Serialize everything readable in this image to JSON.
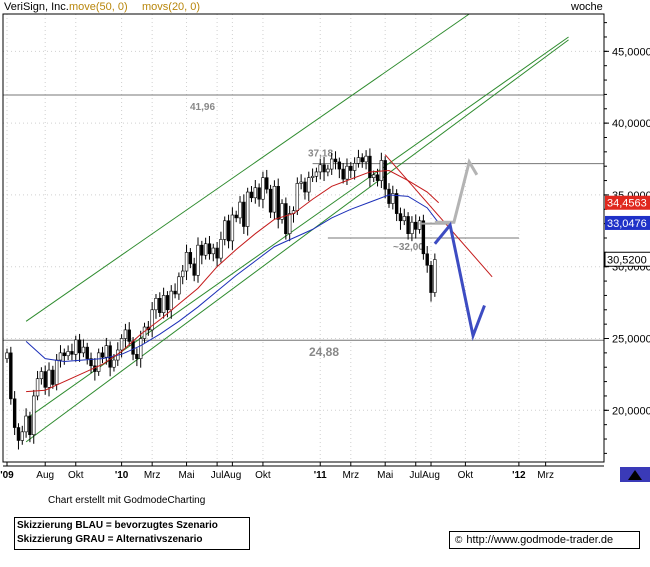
{
  "header": {
    "instrument": "VeriSign, Inc.",
    "ma1_label": "move(50, 0)",
    "ma2_label": "movs(20, 0)",
    "timeframe": "woche"
  },
  "colors": {
    "instrument": "#000000",
    "ma1": "#b8860b",
    "ma2": "#b8860b",
    "trend_channel": "#2e8b2e",
    "sma_blue": "#1c2fb8",
    "sma_red": "#c41a1a",
    "scenario_blue": "#3d4cc2",
    "scenario_grey": "#b4b4b4",
    "badge_red": "#e0281e",
    "badge_blue": "#1f31c8",
    "badge_white": "#ffffff"
  },
  "chart_data": {
    "type": "candlestick",
    "y_min": 16400,
    "y_max": 47600,
    "y_ticks": [
      {
        "value": 45000,
        "label": "45,0000"
      },
      {
        "value": 40000,
        "label": "40,0000"
      },
      {
        "value": 35000,
        "label": "35,0000"
      },
      {
        "value": 30000,
        "label": "30,0000"
      },
      {
        "value": 25000,
        "label": "25,0000"
      },
      {
        "value": 20000,
        "label": "20,0000"
      }
    ],
    "x_labels": [
      {
        "week": 0,
        "label": "'09"
      },
      {
        "week": 10,
        "label": "Aug"
      },
      {
        "week": 18,
        "label": "Okt"
      },
      {
        "week": 30,
        "label": "'10"
      },
      {
        "week": 38,
        "label": "Mrz"
      },
      {
        "week": 47,
        "label": "Mai"
      },
      {
        "week": 55,
        "label": "Jul"
      },
      {
        "week": 59,
        "label": "Aug"
      },
      {
        "week": 67,
        "label": "Okt"
      },
      {
        "week": 82,
        "label": "'11"
      },
      {
        "week": 90,
        "label": "Mrz"
      },
      {
        "week": 99,
        "label": "Mai"
      },
      {
        "week": 107,
        "label": "Jul"
      },
      {
        "week": 111,
        "label": "Aug"
      },
      {
        "week": 120,
        "label": "Okt"
      },
      {
        "week": 134,
        "label": "'12"
      },
      {
        "week": 141,
        "label": "Mrz"
      }
    ],
    "horizontal_levels": [
      {
        "value": 41960,
        "label": "41,96"
      },
      {
        "value": 37180,
        "label": "37,18"
      },
      {
        "value": 32000,
        "label": "~32,00"
      },
      {
        "value": 24880,
        "label": "24,88"
      }
    ],
    "price_badges": [
      {
        "value": 34456,
        "label": "34,4563",
        "color": "badge_red"
      },
      {
        "value": 33048,
        "label": "33,0476",
        "color": "badge_blue"
      },
      {
        "value": 30520,
        "label": "30,5200",
        "color": "badge_white"
      }
    ],
    "trend_channel": [
      {
        "from": [
          5,
          26200
        ],
        "to": [
          121,
          47600
        ]
      },
      {
        "from": [
          5,
          17800
        ],
        "to": [
          147,
          45800
        ]
      },
      {
        "from": [
          5,
          19400
        ],
        "to": [
          147,
          46000
        ]
      }
    ],
    "closes": [
      24000,
      20800,
      18800,
      17900,
      18500,
      19600,
      18300,
      21000,
      22200,
      22700,
      21600,
      22800,
      21800,
      23500,
      24000,
      23800,
      24100,
      23900,
      24900,
      24000,
      24400,
      23600,
      23100,
      22700,
      24000,
      23700,
      24500,
      23000,
      23500,
      24200,
      25000,
      25600,
      24800,
      23900,
      23600,
      25000,
      25800,
      25600,
      27000,
      27800,
      26800,
      28000,
      27000,
      28300,
      28100,
      29300,
      29700,
      31000,
      30200,
      29400,
      31500,
      30800,
      31600,
      30900,
      31300,
      30600,
      31900,
      33200,
      31800,
      33600,
      33400,
      34500,
      32800,
      35200,
      34800,
      35500,
      34700,
      36200,
      35400,
      33800,
      35600,
      33300,
      34400,
      32300,
      33700,
      33900,
      35800,
      35900,
      35200,
      36200,
      36300,
      36600,
      37100,
      36600,
      36800,
      37500,
      37300,
      36800,
      36100,
      37000,
      36700,
      37200,
      37600,
      37300,
      37700,
      36200,
      36400,
      36000,
      37400,
      35400,
      34400,
      35100,
      33700,
      33200,
      33500,
      32300,
      33100,
      32600,
      33200,
      30900,
      30100,
      28200,
      30500
    ],
    "sma_red_points": [
      [
        5,
        21300
      ],
      [
        10,
        21400
      ],
      [
        15,
        22000
      ],
      [
        20,
        22600
      ],
      [
        25,
        23200
      ],
      [
        30,
        24100
      ],
      [
        35,
        25300
      ],
      [
        40,
        26300
      ],
      [
        45,
        27400
      ],
      [
        50,
        28500
      ],
      [
        55,
        30000
      ],
      [
        60,
        31200
      ],
      [
        65,
        32300
      ],
      [
        70,
        33300
      ],
      [
        75,
        33700
      ],
      [
        80,
        34700
      ],
      [
        85,
        35600
      ],
      [
        90,
        36100
      ],
      [
        95,
        36600
      ],
      [
        100,
        36700
      ],
      [
        105,
        36000
      ],
      [
        110,
        35200
      ],
      [
        113,
        34456
      ]
    ],
    "sma_blue_points": [
      [
        5,
        24800
      ],
      [
        10,
        23600
      ],
      [
        15,
        23400
      ],
      [
        20,
        23500
      ],
      [
        25,
        23600
      ],
      [
        30,
        23900
      ],
      [
        35,
        24500
      ],
      [
        40,
        25300
      ],
      [
        45,
        26200
      ],
      [
        50,
        27200
      ],
      [
        55,
        28300
      ],
      [
        60,
        29400
      ],
      [
        65,
        30400
      ],
      [
        70,
        31400
      ],
      [
        75,
        32000
      ],
      [
        80,
        32600
      ],
      [
        85,
        33400
      ],
      [
        90,
        34000
      ],
      [
        95,
        34500
      ],
      [
        100,
        35000
      ],
      [
        105,
        34900
      ],
      [
        110,
        34100
      ],
      [
        113,
        33048
      ]
    ],
    "red_downtrend": {
      "from": [
        99,
        37800
      ],
      "to": [
        127,
        29300
      ]
    },
    "scenario_grey": [
      [
        112,
        33100
      ],
      [
        117,
        33100
      ],
      [
        121,
        37300
      ],
      [
        123,
        36400
      ]
    ],
    "scenario_blue": [
      [
        112,
        31600
      ],
      [
        116,
        32900
      ],
      [
        122,
        25200
      ],
      [
        125,
        27300
      ]
    ],
    "annotation_grey_level": {
      "from": [
        108,
        33000
      ],
      "to": [
        116,
        33000
      ]
    }
  },
  "footer": {
    "credit": "Chart erstellt mit GodmodeCharting",
    "legend_blue": "Skizzierung BLAU = bevorzugtes Szenario",
    "legend_grey": "Skizzierung GRAU = Alternativszenario",
    "url": "http://www.godmode-trader.de"
  }
}
